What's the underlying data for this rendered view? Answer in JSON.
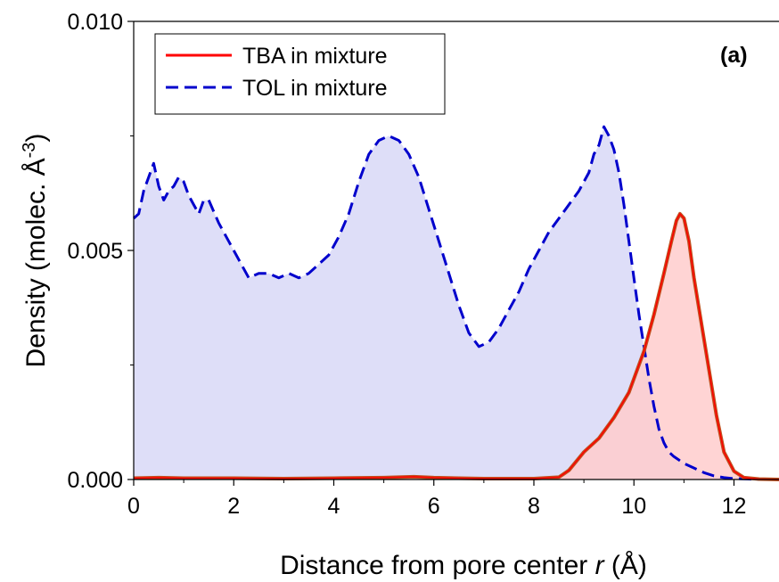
{
  "chart_data": {
    "type": "area",
    "panel_label": "(a)",
    "xlabel_prefix": "Distance from pore center ",
    "xlabel_var": "r",
    "xlabel_suffix": " (Å)",
    "ylabel_main": "Density (molec. Å",
    "ylabel_sup": "-3",
    "ylabel_close": ")",
    "xlim": [
      0,
      12.9
    ],
    "ylim": [
      0,
      0.01
    ],
    "x_ticks": [
      0,
      2,
      4,
      6,
      8,
      10,
      12
    ],
    "x_tick_labels": [
      "0",
      "2",
      "4",
      "6",
      "8",
      "10",
      "12"
    ],
    "y_ticks": [
      0,
      0.005,
      0.01
    ],
    "y_tick_labels": [
      "0.000",
      "0.005",
      "0.010"
    ],
    "y_minor_ticks": [
      0.0025,
      0.0075
    ],
    "legend_position": "top-left",
    "series": [
      {
        "name": "TBA in mixture",
        "line_color": "#ff0000",
        "outline_color": "#c0501e",
        "fill_color": "#ffcccc",
        "line_style": "solid",
        "x": [
          0,
          0.5,
          1,
          2,
          3,
          4,
          5,
          5.6,
          6,
          6.5,
          7,
          7.5,
          8,
          8.5,
          8.7,
          9.0,
          9.3,
          9.6,
          9.9,
          10.2,
          10.4,
          10.6,
          10.75,
          10.85,
          10.92,
          11.0,
          11.1,
          11.2,
          11.35,
          11.5,
          11.65,
          11.8,
          12.0,
          12.2,
          12.5,
          12.9
        ],
        "y": [
          3e-05,
          4e-05,
          3e-05,
          3e-05,
          2e-05,
          3e-05,
          4e-05,
          6e-05,
          4e-05,
          3e-05,
          2e-05,
          2e-05,
          2e-05,
          5e-05,
          0.0002,
          0.0006,
          0.0009,
          0.00135,
          0.0019,
          0.0028,
          0.0036,
          0.0045,
          0.0052,
          0.00565,
          0.0058,
          0.0057,
          0.0052,
          0.0044,
          0.0034,
          0.0024,
          0.0014,
          0.0006,
          0.00018,
          4e-05,
          1e-05,
          0
        ]
      },
      {
        "name": "TOL in mixture",
        "line_color": "#0000cc",
        "fill_color": "#dedef8",
        "line_style": "dashed",
        "x": [
          0,
          0.1,
          0.2,
          0.3,
          0.4,
          0.5,
          0.6,
          0.7,
          0.8,
          0.9,
          1.0,
          1.1,
          1.2,
          1.3,
          1.4,
          1.5,
          1.7,
          1.9,
          2.1,
          2.3,
          2.5,
          2.7,
          2.9,
          3.1,
          3.3,
          3.5,
          3.7,
          3.9,
          4.1,
          4.3,
          4.5,
          4.7,
          4.9,
          5.1,
          5.3,
          5.5,
          5.7,
          5.9,
          6.1,
          6.3,
          6.5,
          6.7,
          6.9,
          7.1,
          7.3,
          7.5,
          7.7,
          7.9,
          8.1,
          8.3,
          8.5,
          8.7,
          8.9,
          9.1,
          9.2,
          9.3,
          9.4,
          9.5,
          9.6,
          9.7,
          9.8,
          9.9,
          10.0,
          10.1,
          10.2,
          10.3,
          10.4,
          10.5,
          10.6,
          10.7,
          10.8,
          11.0,
          11.2,
          11.4,
          11.6,
          11.8,
          12.0,
          12.3,
          12.6,
          12.9
        ],
        "y": [
          0.0057,
          0.0058,
          0.0063,
          0.0066,
          0.0069,
          0.0064,
          0.0061,
          0.0063,
          0.0064,
          0.0066,
          0.0065,
          0.0062,
          0.006,
          0.0058,
          0.0061,
          0.0061,
          0.0056,
          0.0052,
          0.0048,
          0.0044,
          0.0045,
          0.0045,
          0.0044,
          0.0045,
          0.0044,
          0.0045,
          0.0047,
          0.0049,
          0.0053,
          0.0058,
          0.0065,
          0.0071,
          0.0074,
          0.0075,
          0.0074,
          0.0071,
          0.0066,
          0.0059,
          0.0052,
          0.0045,
          0.0038,
          0.0032,
          0.0029,
          0.003,
          0.0033,
          0.0037,
          0.0041,
          0.0046,
          0.005,
          0.0054,
          0.0057,
          0.006,
          0.0063,
          0.0067,
          0.0071,
          0.0073,
          0.0077,
          0.0075,
          0.0072,
          0.0067,
          0.006,
          0.0052,
          0.0044,
          0.0036,
          0.0029,
          0.0022,
          0.0016,
          0.0011,
          0.0008,
          0.0006,
          0.0005,
          0.00035,
          0.00025,
          0.00015,
          8e-05,
          4e-05,
          2e-05,
          1e-05,
          0.0,
          0.0
        ]
      }
    ]
  }
}
